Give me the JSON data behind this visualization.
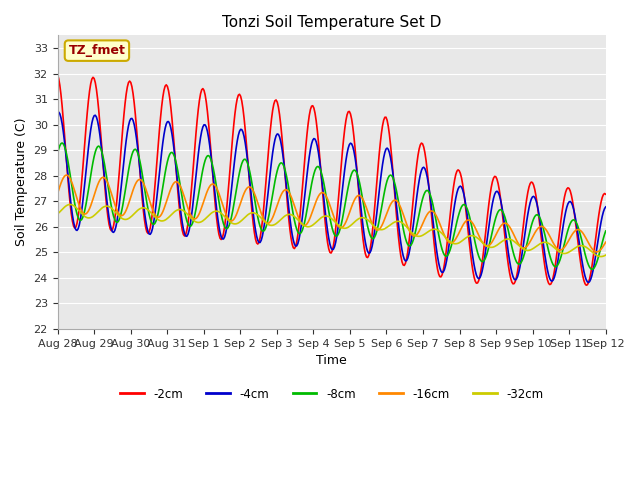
{
  "title": "Tonzi Soil Temperature Set D",
  "xlabel": "Time",
  "ylabel": "Soil Temperature (C)",
  "ylim": [
    22.0,
    33.5
  ],
  "yticks": [
    22.0,
    23.0,
    24.0,
    25.0,
    26.0,
    27.0,
    28.0,
    29.0,
    30.0,
    31.0,
    32.0,
    33.0
  ],
  "fig_bg_color": "#ffffff",
  "plot_bg_color": "#e8e8e8",
  "grid_color": "#ffffff",
  "legend_label": "TZ_fmet",
  "legend_box_facecolor": "#ffffcc",
  "legend_box_edgecolor": "#ccaa00",
  "series_colors": [
    "#ff0000",
    "#0000cc",
    "#00bb00",
    "#ff8800",
    "#cccc00"
  ],
  "series_labels": [
    "-2cm",
    "-4cm",
    "-8cm",
    "-16cm",
    "-32cm"
  ],
  "xtick_labels": [
    "Aug 28",
    "Aug 29",
    "Aug 30",
    "Aug 31",
    "Sep 1",
    "Sep 2",
    "Sep 3",
    "Sep 4",
    "Sep 5",
    "Sep 6",
    "Sep 7",
    "Sep 8",
    "Sep 9",
    "Sep 10",
    "Sep 11",
    "Sep 12"
  ],
  "n_points": 480,
  "total_days": 15
}
